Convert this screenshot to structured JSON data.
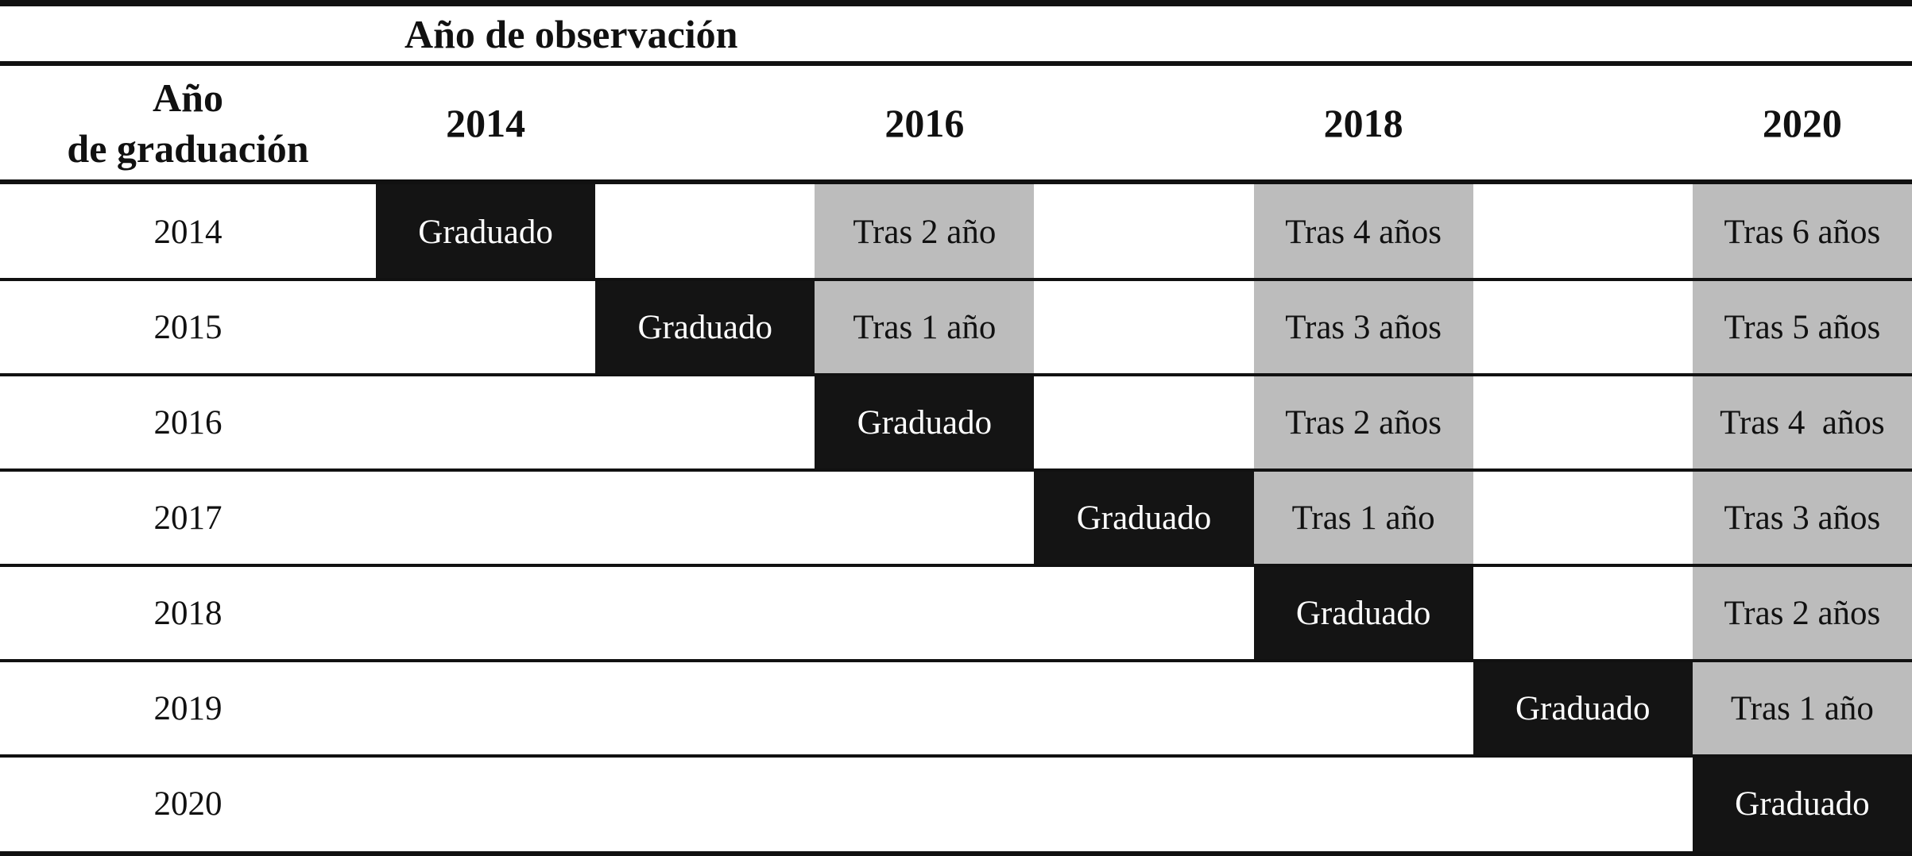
{
  "title": "Año de observación",
  "row_header": [
    "Año",
    "de graduación"
  ],
  "columns": [
    "2014",
    null,
    "2016",
    null,
    "2018",
    null,
    "2020"
  ],
  "rows": [
    {
      "label": "2014",
      "cells": [
        {
          "text": "Graduado",
          "fill": "#141414"
        },
        null,
        {
          "text": "Tras 2 año",
          "fill": "#bcbcbc"
        },
        null,
        {
          "text": "Tras 4 años",
          "fill": "#bcbcbc"
        },
        null,
        {
          "text": "Tras 6 años",
          "fill": "#bcbcbc"
        }
      ]
    },
    {
      "label": "2015",
      "cells": [
        null,
        {
          "text": "Graduado",
          "fill": "#141414"
        },
        {
          "text": "Tras 1 año",
          "fill": "#bcbcbc"
        },
        null,
        {
          "text": "Tras 3 años",
          "fill": "#bcbcbc"
        },
        null,
        {
          "text": "Tras 5 años",
          "fill": "#bcbcbc"
        }
      ]
    },
    {
      "label": "2016",
      "cells": [
        null,
        null,
        {
          "text": "Graduado",
          "fill": "#141414"
        },
        null,
        {
          "text": "Tras 2 años",
          "fill": "#bcbcbc"
        },
        null,
        {
          "text": "Tras 4  años",
          "fill": "#bcbcbc"
        }
      ]
    },
    {
      "label": "2017",
      "cells": [
        null,
        null,
        null,
        {
          "text": "Graduado",
          "fill": "#141414"
        },
        {
          "text": "Tras 1 año",
          "fill": "#bcbcbc"
        },
        null,
        {
          "text": "Tras 3 años",
          "fill": "#bcbcbc"
        }
      ]
    },
    {
      "label": "2018",
      "cells": [
        null,
        null,
        null,
        null,
        {
          "text": "Graduado",
          "fill": "#141414"
        },
        null,
        {
          "text": "Tras 2 años",
          "fill": "#bcbcbc"
        }
      ]
    },
    {
      "label": "2019",
      "cells": [
        null,
        null,
        null,
        null,
        null,
        {
          "text": "Graduado",
          "fill": "#141414"
        },
        {
          "text": "Tras 1 año",
          "fill": "#bcbcbc"
        }
      ]
    },
    {
      "label": "2020",
      "cells": [
        null,
        null,
        null,
        null,
        null,
        null,
        {
          "text": "Graduado",
          "fill": "#141414"
        }
      ]
    }
  ]
}
